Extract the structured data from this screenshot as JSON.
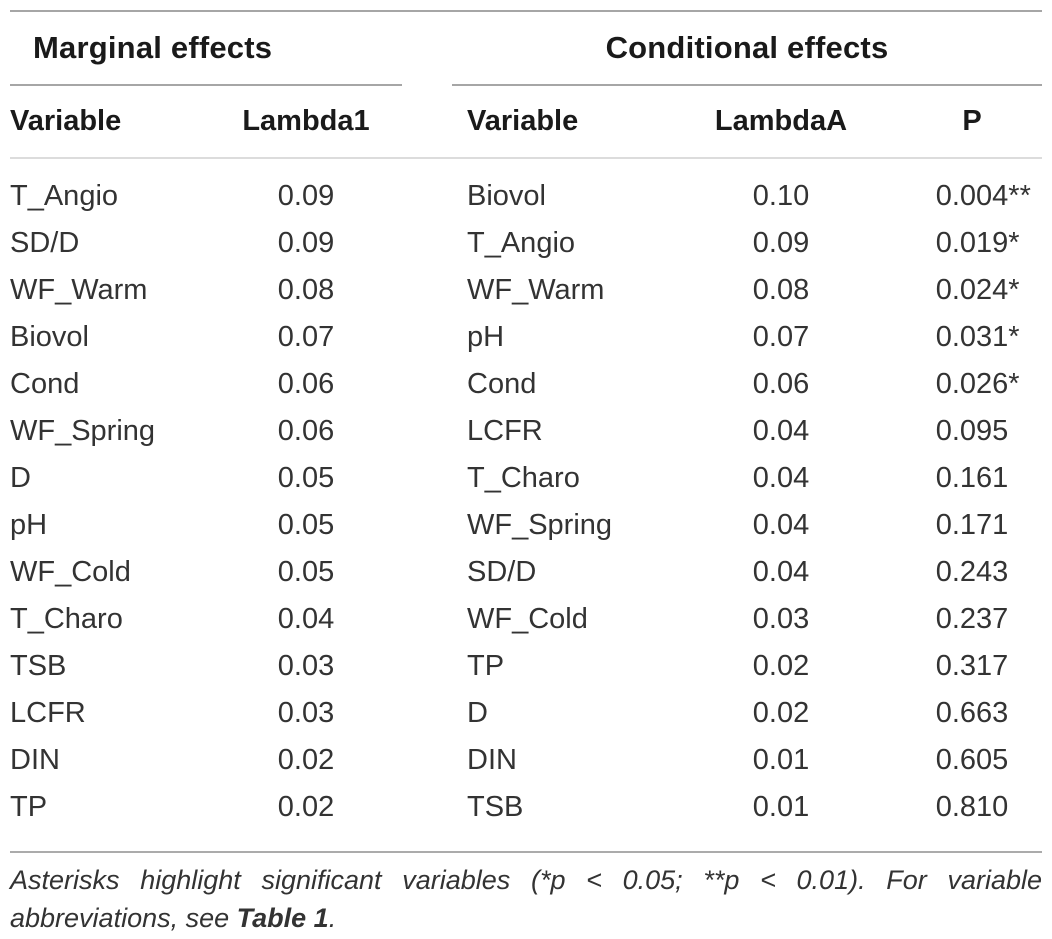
{
  "marginal": {
    "title": "Marginal effects",
    "columns": {
      "variable": "Variable",
      "lambda": "Lambda1"
    },
    "rows": [
      {
        "variable": "T_Angio",
        "lambda": "0.09"
      },
      {
        "variable": "SD/D",
        "lambda": "0.09"
      },
      {
        "variable": "WF_Warm",
        "lambda": "0.08"
      },
      {
        "variable": "Biovol",
        "lambda": "0.07"
      },
      {
        "variable": "Cond",
        "lambda": "0.06"
      },
      {
        "variable": "WF_Spring",
        "lambda": "0.06"
      },
      {
        "variable": "D",
        "lambda": "0.05"
      },
      {
        "variable": "pH",
        "lambda": "0.05"
      },
      {
        "variable": "WF_Cold",
        "lambda": "0.05"
      },
      {
        "variable": "T_Charo",
        "lambda": "0.04"
      },
      {
        "variable": "TSB",
        "lambda": "0.03"
      },
      {
        "variable": "LCFR",
        "lambda": "0.03"
      },
      {
        "variable": "DIN",
        "lambda": "0.02"
      },
      {
        "variable": "TP",
        "lambda": "0.02"
      }
    ]
  },
  "conditional": {
    "title": "Conditional effects",
    "columns": {
      "variable": "Variable",
      "lambda": "LambdaA",
      "p": "P"
    },
    "rows": [
      {
        "variable": "Biovol",
        "lambda": "0.10",
        "p": "0.004",
        "sig": "**"
      },
      {
        "variable": "T_Angio",
        "lambda": "0.09",
        "p": "0.019",
        "sig": "*"
      },
      {
        "variable": "WF_Warm",
        "lambda": "0.08",
        "p": "0.024",
        "sig": "*"
      },
      {
        "variable": "pH",
        "lambda": "0.07",
        "p": "0.031",
        "sig": "*"
      },
      {
        "variable": "Cond",
        "lambda": "0.06",
        "p": "0.026",
        "sig": "*"
      },
      {
        "variable": "LCFR",
        "lambda": "0.04",
        "p": "0.095",
        "sig": ""
      },
      {
        "variable": "T_Charo",
        "lambda": "0.04",
        "p": "0.161",
        "sig": ""
      },
      {
        "variable": "WF_Spring",
        "lambda": "0.04",
        "p": "0.171",
        "sig": ""
      },
      {
        "variable": "SD/D",
        "lambda": "0.04",
        "p": "0.243",
        "sig": ""
      },
      {
        "variable": "WF_Cold",
        "lambda": "0.03",
        "p": "0.237",
        "sig": ""
      },
      {
        "variable": "TP",
        "lambda": "0.02",
        "p": "0.317",
        "sig": ""
      },
      {
        "variable": "D",
        "lambda": "0.02",
        "p": "0.663",
        "sig": ""
      },
      {
        "variable": "DIN",
        "lambda": "0.01",
        "p": "0.605",
        "sig": ""
      },
      {
        "variable": "TSB",
        "lambda": "0.01",
        "p": "0.810",
        "sig": ""
      }
    ]
  },
  "footnote": {
    "line1": "Asterisks highlight significant variables (*p < 0.05; **p < 0.01). For variable",
    "line2_prefix": "abbreviations, see ",
    "line2_bold": "Table 1",
    "line2_suffix": "."
  }
}
